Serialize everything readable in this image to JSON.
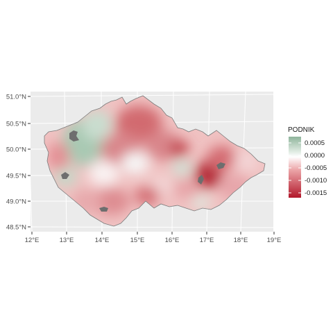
{
  "map": {
    "x_ticks": [
      "12°E",
      "13°E",
      "14°E",
      "15°E",
      "16°E",
      "17°E",
      "18°E",
      "19°E"
    ],
    "y_ticks": [
      "48.5°N",
      "49.0°N",
      "49.5°N",
      "50.0°N",
      "50.5°N",
      "51.0°N"
    ],
    "x_range": [
      12,
      19
    ],
    "y_range": [
      48.5,
      51.0
    ],
    "panel_background": "#ebebeb",
    "grid": true
  },
  "legend": {
    "title": "PODNIK",
    "labels": [
      "0.0005",
      "0.0000",
      "-0.0005",
      "-0.0010",
      "-0.0015"
    ],
    "colors": {
      "high": "#8fb59c",
      "mid": "#ffffff",
      "low": "#b2182b"
    }
  },
  "colors": {
    "missing_data": "#6e6e6e",
    "axis_text": "#4d4d4d"
  }
}
